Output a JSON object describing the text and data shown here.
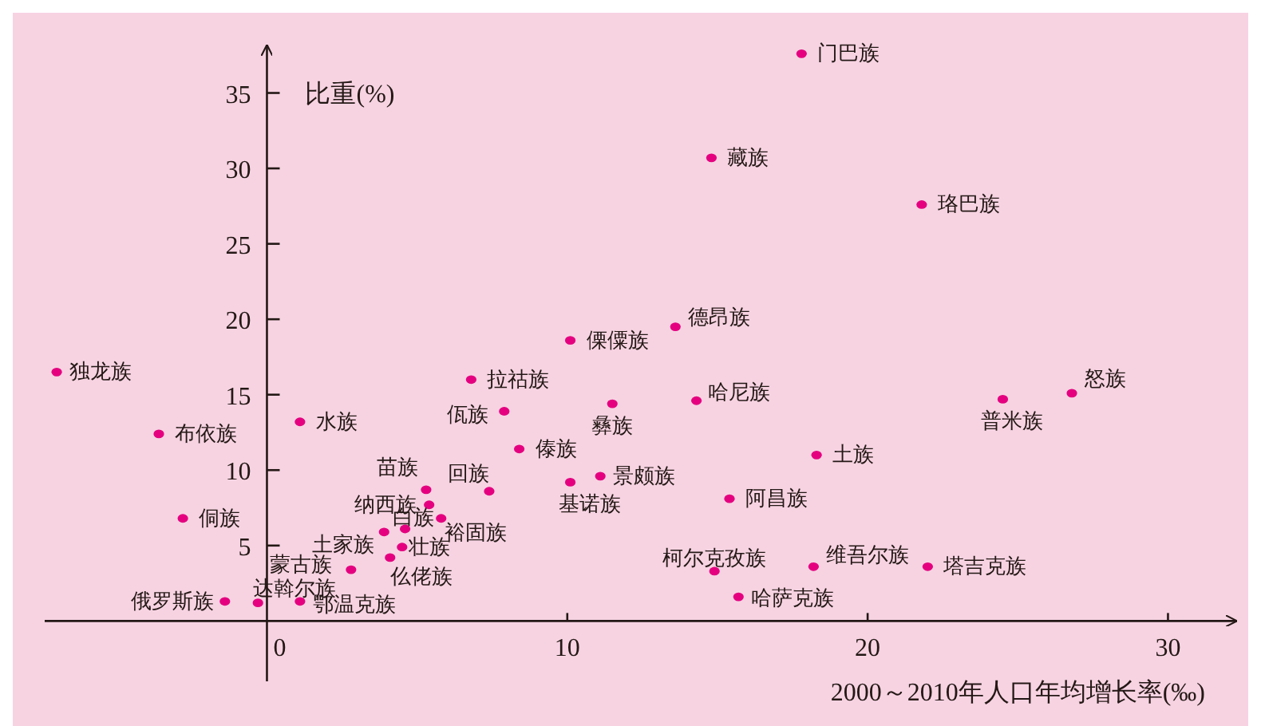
{
  "chart_data": {
    "type": "scatter",
    "xlabel": "2000～2010年人口年均增长率(‰)",
    "ylabel": "比重(%)",
    "xlim": [
      -7.4,
      32.3
    ],
    "ylim": [
      -4,
      38.2
    ],
    "xticks": [
      0,
      10,
      20,
      30
    ],
    "yticks": [
      5,
      10,
      15,
      20,
      25,
      30,
      35
    ],
    "grid": false,
    "marker": "circle",
    "series": [
      {
        "name": "门巴族",
        "color": "#e4007f",
        "x": [
          17.8
        ],
        "values": [
          37.6
        ]
      },
      {
        "name": "藏族",
        "color": "#e4007f",
        "x": [
          14.8
        ],
        "values": [
          30.7
        ]
      },
      {
        "name": "珞巴族",
        "color": "#e4007f",
        "x": [
          21.8
        ],
        "values": [
          27.6
        ]
      },
      {
        "name": "德昂族",
        "color": "#e4007f",
        "x": [
          13.6
        ],
        "values": [
          19.5
        ]
      },
      {
        "name": "傈僳族",
        "color": "#e4007f",
        "x": [
          10.1
        ],
        "values": [
          18.6
        ]
      },
      {
        "name": "独龙族",
        "color": "#e4007f",
        "x": [
          -7.0
        ],
        "values": [
          16.5
        ]
      },
      {
        "name": "拉祜族",
        "color": "#e4007f",
        "x": [
          6.8
        ],
        "values": [
          16.0
        ]
      },
      {
        "name": "佤族",
        "color": "#e4007f",
        "x": [
          7.9
        ],
        "values": [
          13.9
        ]
      },
      {
        "name": "哈尼族",
        "color": "#e4007f",
        "x": [
          14.3
        ],
        "values": [
          14.6
        ]
      },
      {
        "name": "彝族",
        "color": "#e4007f",
        "x": [
          11.5
        ],
        "values": [
          14.4
        ]
      },
      {
        "name": "普米族",
        "color": "#e4007f",
        "x": [
          24.5
        ],
        "values": [
          14.7
        ]
      },
      {
        "name": "怒族",
        "color": "#e4007f",
        "x": [
          26.8
        ],
        "values": [
          15.1
        ]
      },
      {
        "name": "水族",
        "color": "#e4007f",
        "x": [
          1.1
        ],
        "values": [
          13.2
        ]
      },
      {
        "name": "布依族",
        "color": "#e4007f",
        "x": [
          -3.6
        ],
        "values": [
          12.4
        ]
      },
      {
        "name": "傣族",
        "color": "#e4007f",
        "x": [
          8.4
        ],
        "values": [
          11.4
        ]
      },
      {
        "name": "土族",
        "color": "#e4007f",
        "x": [
          18.3
        ],
        "values": [
          11.0
        ]
      },
      {
        "name": "苗族",
        "color": "#e4007f",
        "x": [
          5.3
        ],
        "values": [
          8.7
        ]
      },
      {
        "name": "回族",
        "color": "#e4007f",
        "x": [
          7.4
        ],
        "values": [
          8.6
        ]
      },
      {
        "name": "基诺族",
        "color": "#e4007f",
        "x": [
          10.1
        ],
        "values": [
          9.2
        ]
      },
      {
        "name": "景颇族",
        "color": "#e4007f",
        "x": [
          11.1
        ],
        "values": [
          9.6
        ]
      },
      {
        "name": "阿昌族",
        "color": "#e4007f",
        "x": [
          15.4
        ],
        "values": [
          8.1
        ]
      },
      {
        "name": "纳西族",
        "color": "#e4007f",
        "x": [
          5.4
        ],
        "values": [
          7.7
        ]
      },
      {
        "name": "侗族",
        "color": "#e4007f",
        "x": [
          -2.8
        ],
        "values": [
          6.8
        ]
      },
      {
        "name": "裕固族",
        "color": "#e4007f",
        "x": [
          5.8
        ],
        "values": [
          6.8
        ]
      },
      {
        "name": "土家族",
        "color": "#e4007f",
        "x": [
          3.9
        ],
        "values": [
          5.9
        ]
      },
      {
        "name": "白族",
        "color": "#e4007f",
        "x": [
          4.6
        ],
        "values": [
          6.1
        ]
      },
      {
        "name": "壮族",
        "color": "#e4007f",
        "x": [
          4.5
        ],
        "values": [
          4.9
        ]
      },
      {
        "name": "仫佬族",
        "color": "#e4007f",
        "x": [
          4.1
        ],
        "values": [
          4.2
        ]
      },
      {
        "name": "蒙古族",
        "color": "#e4007f",
        "x": [
          2.8
        ],
        "values": [
          3.4
        ]
      },
      {
        "name": "维吾尔族",
        "color": "#e4007f",
        "x": [
          18.2
        ],
        "values": [
          3.6
        ]
      },
      {
        "name": "塔吉克族",
        "color": "#e4007f",
        "x": [
          22.0
        ],
        "values": [
          3.6
        ]
      },
      {
        "name": "柯尔克孜族",
        "color": "#e4007f",
        "x": [
          14.9
        ],
        "values": [
          3.3
        ]
      },
      {
        "name": "俄罗斯族",
        "color": "#e4007f",
        "x": [
          -1.4
        ],
        "values": [
          1.3
        ]
      },
      {
        "name": "达斡尔族",
        "color": "#e4007f",
        "x": [
          -0.3
        ],
        "values": [
          1.2
        ]
      },
      {
        "name": "鄂温克族",
        "color": "#e4007f",
        "x": [
          1.1
        ],
        "values": [
          1.3
        ]
      },
      {
        "name": "哈萨克族",
        "color": "#e4007f",
        "x": [
          15.7
        ],
        "values": [
          1.6
        ]
      }
    ]
  }
}
